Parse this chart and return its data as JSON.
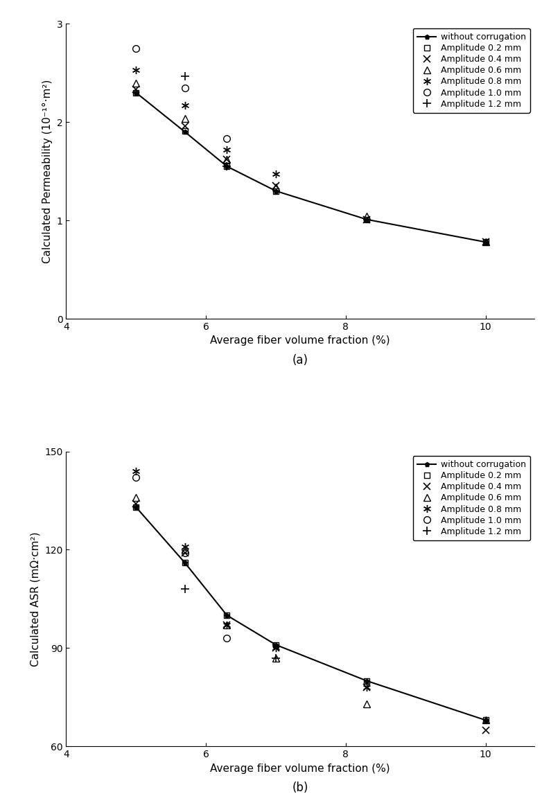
{
  "chart_a": {
    "title": "(a)",
    "ylabel": "Calculated Permeability (10⁻¹°·m²)",
    "xlabel": "Average fiber volume fraction (%)",
    "xlim": [
      4,
      10.7
    ],
    "ylim": [
      0,
      3
    ],
    "xticks": [
      4,
      6,
      8,
      10
    ],
    "yticks": [
      0,
      1,
      2,
      3
    ],
    "without_corrugation": {
      "x": [
        5.0,
        5.7,
        6.3,
        7.0,
        8.3,
        10.0
      ],
      "y": [
        2.3,
        1.9,
        1.55,
        1.3,
        1.01,
        0.78
      ],
      "label": "without corrugation"
    },
    "amplitude_series": [
      {
        "label": "Amplitude 0.2 mm",
        "marker": "s",
        "x": [
          5.0,
          5.7,
          6.3,
          7.0,
          8.3,
          10.0
        ],
        "y": [
          2.3,
          1.91,
          1.55,
          1.3,
          1.01,
          0.78
        ]
      },
      {
        "label": "Amplitude 0.4 mm",
        "marker": "x",
        "x": [
          5.0,
          5.7,
          6.3,
          7.0,
          8.3,
          10.0
        ],
        "y": [
          2.33,
          1.96,
          1.62,
          1.35,
          1.01,
          0.78
        ]
      },
      {
        "label": "Amplitude 0.6 mm",
        "marker": "^",
        "x": [
          5.0,
          5.7,
          6.3,
          7.0,
          8.3,
          10.0
        ],
        "y": [
          2.4,
          2.04,
          1.62,
          1.34,
          1.04,
          0.78
        ]
      },
      {
        "label": "Amplitude 0.8 mm",
        "marker": "astr",
        "x": [
          5.0,
          5.7,
          6.3,
          7.0
        ],
        "y": [
          2.53,
          2.17,
          1.72,
          1.47
        ]
      },
      {
        "label": "Amplitude 1.0 mm",
        "marker": "o",
        "x": [
          5.0,
          5.7,
          6.3
        ],
        "y": [
          2.75,
          2.35,
          1.83
        ]
      },
      {
        "label": "Amplitude 1.2 mm",
        "marker": "+",
        "x": [
          5.7,
          6.3
        ],
        "y": [
          2.47,
          1.55
        ]
      }
    ]
  },
  "chart_b": {
    "title": "(b)",
    "ylabel": "Calculated ASR (mΩ·cm²)",
    "xlabel": "Average fiber volume fraction (%)",
    "xlim": [
      4,
      10.7
    ],
    "ylim": [
      60,
      150
    ],
    "xticks": [
      4,
      6,
      8,
      10
    ],
    "yticks": [
      60,
      90,
      120,
      150
    ],
    "without_corrugation": {
      "x": [
        5.0,
        5.7,
        6.3,
        7.0,
        8.3,
        10.0
      ],
      "y": [
        133,
        116,
        100,
        91,
        80,
        68
      ],
      "label": "without corrugation"
    },
    "amplitude_series": [
      {
        "label": "Amplitude 0.2 mm",
        "marker": "s",
        "x": [
          5.0,
          5.7,
          6.3,
          7.0,
          8.3,
          10.0
        ],
        "y": [
          133,
          116,
          100,
          91,
          80,
          68
        ]
      },
      {
        "label": "Amplitude 0.4 mm",
        "marker": "x",
        "x": [
          5.0,
          5.7,
          6.3,
          7.0,
          8.3,
          10.0
        ],
        "y": [
          134,
          119,
          97,
          90,
          78,
          65
        ]
      },
      {
        "label": "Amplitude 0.6 mm",
        "marker": "^",
        "x": [
          5.0,
          5.7,
          6.3,
          7.0,
          8.3,
          10.0
        ],
        "y": [
          136,
          120,
          97,
          87,
          73,
          68
        ]
      },
      {
        "label": "Amplitude 0.8 mm",
        "marker": "astr",
        "x": [
          5.0,
          5.7,
          6.3,
          7.0,
          8.3
        ],
        "y": [
          144,
          121,
          97,
          90,
          78
        ]
      },
      {
        "label": "Amplitude 1.0 mm",
        "marker": "o",
        "x": [
          5.0,
          5.7,
          6.3
        ],
        "y": [
          142,
          119,
          93
        ]
      },
      {
        "label": "Amplitude 1.2 mm",
        "marker": "+",
        "x": [
          5.7,
          7.0
        ],
        "y": [
          108,
          87
        ]
      }
    ]
  }
}
